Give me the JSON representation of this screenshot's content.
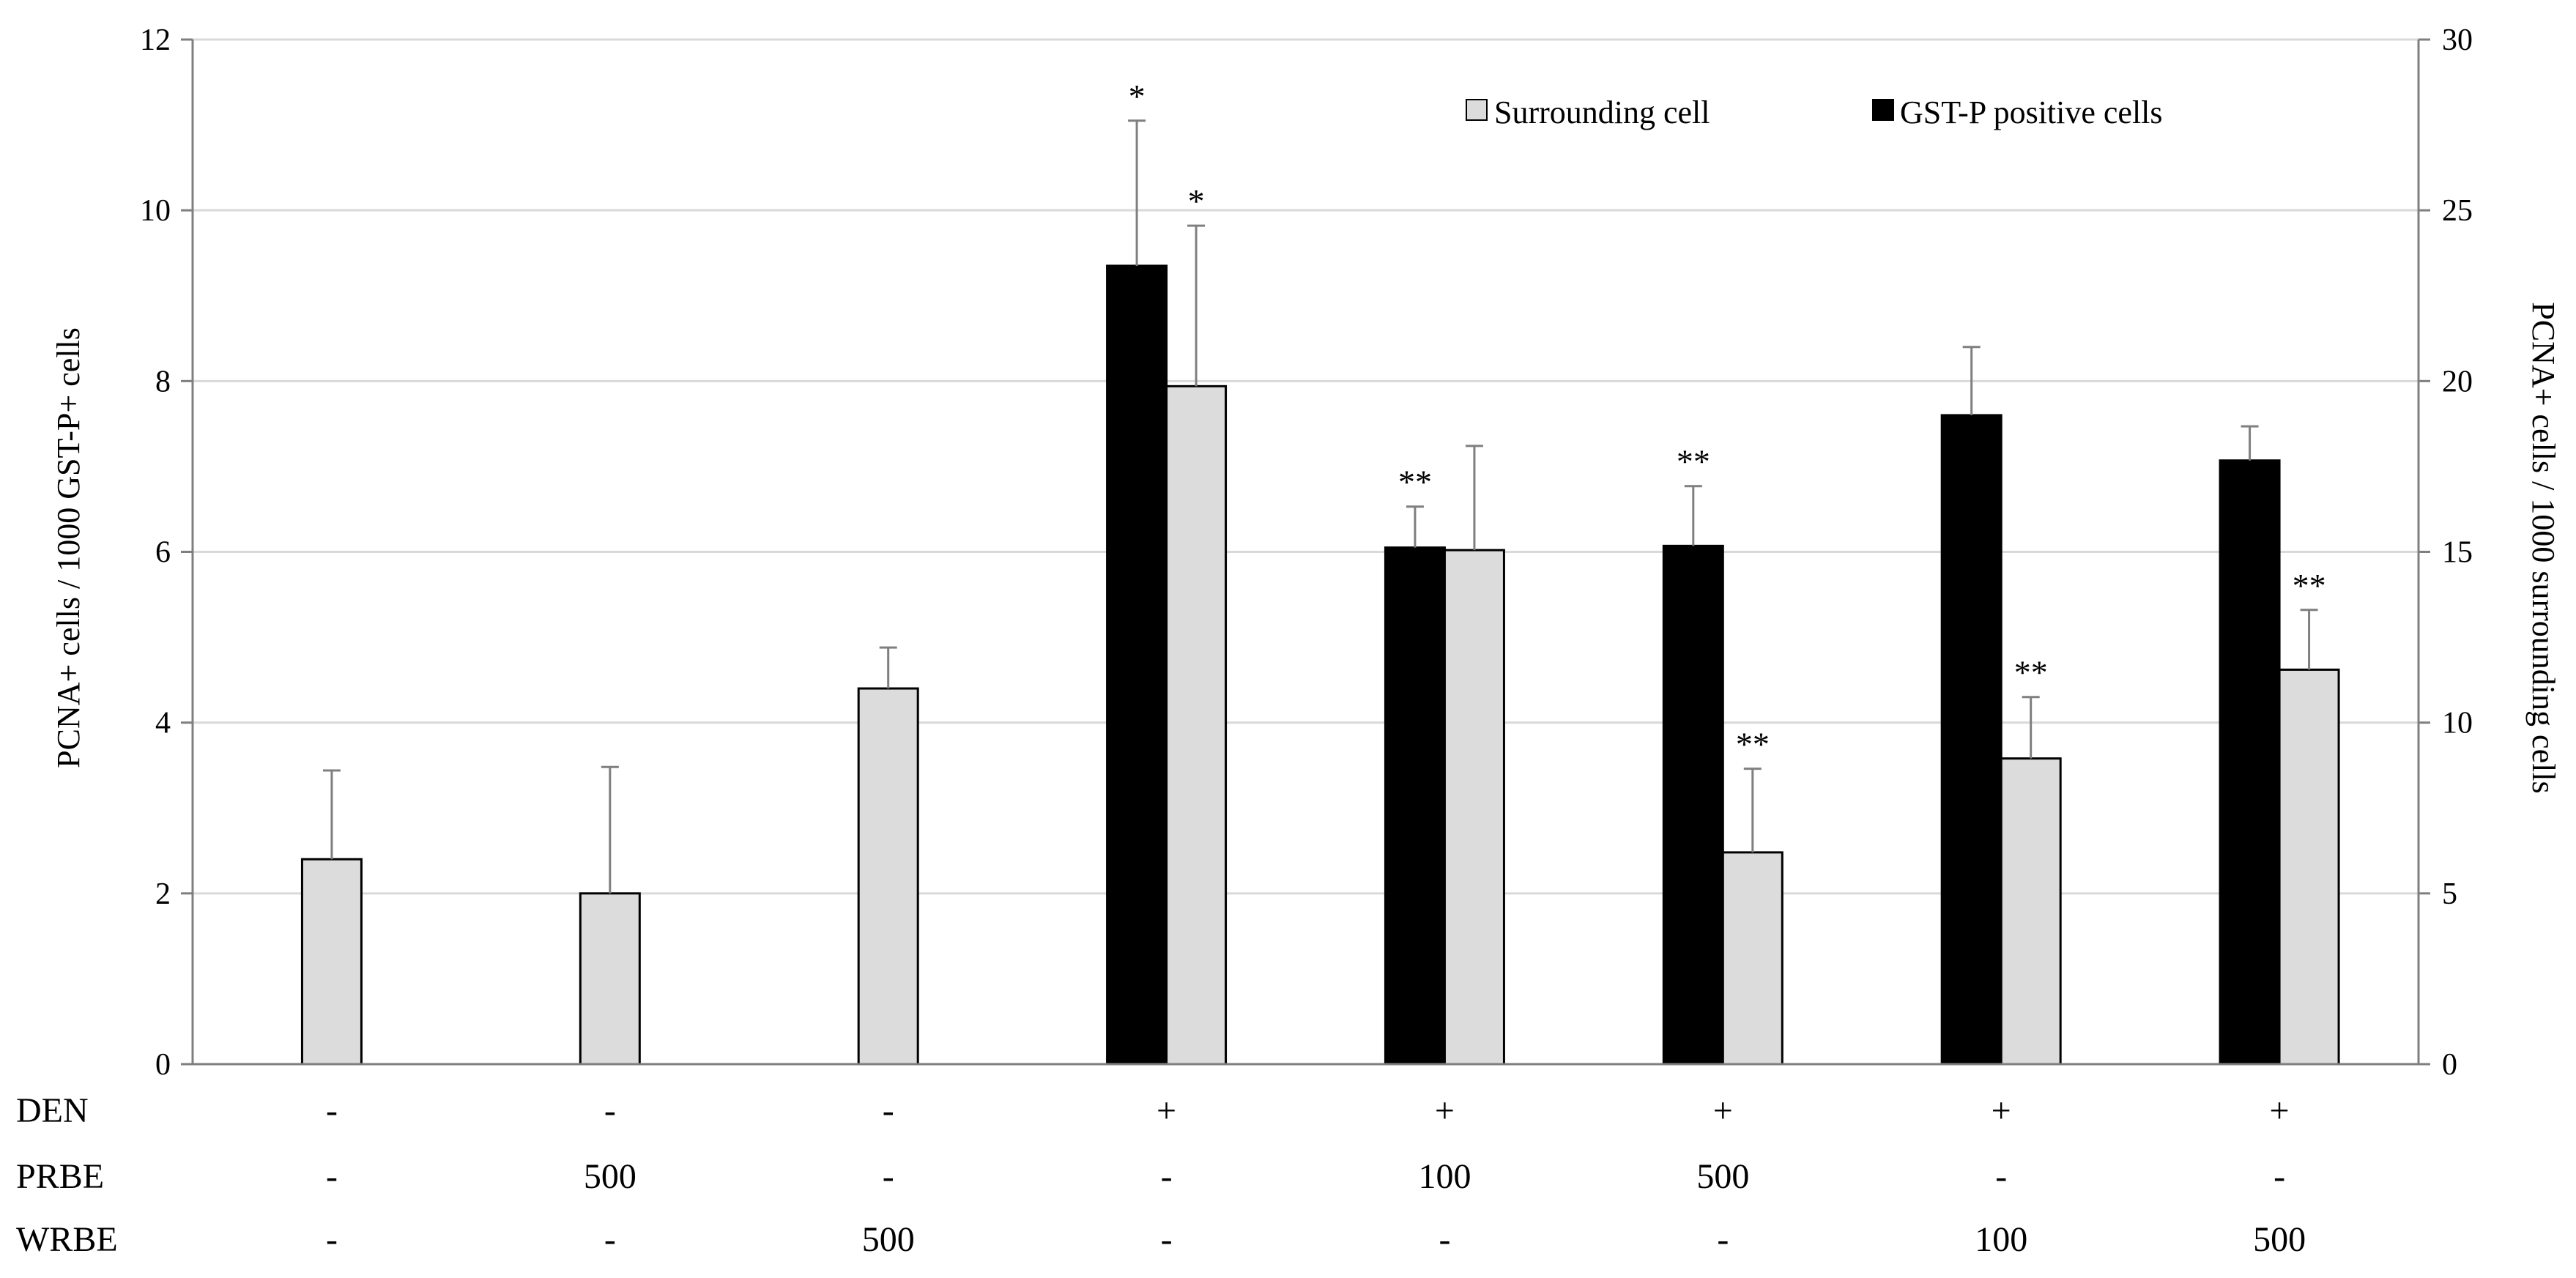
{
  "chart_data": {
    "type": "bar",
    "groups": 8,
    "left_axis": {
      "label": "PCNA+ cells / 1000 GST-P+ cells",
      "min": 0,
      "max": 12,
      "ticks": [
        "0",
        "2",
        "4",
        "6",
        "8",
        "10",
        "12"
      ]
    },
    "right_axis": {
      "label": "PCNA+ cells / 1000 surrounding cells",
      "min": 0,
      "max": 30,
      "ticks": [
        "0",
        "5",
        "10",
        "15",
        "20",
        "25",
        "30"
      ]
    },
    "gridlines": true,
    "legend": {
      "position": "top-right",
      "entries": [
        {
          "name": "Surrounding cell",
          "color": "#dcdcdc"
        },
        {
          "name": "GST-P positive cells",
          "color": "#000000"
        }
      ]
    },
    "series": [
      {
        "name": "GST-P positive cells",
        "axis": "left",
        "color": "#000000",
        "values": [
          null,
          null,
          null,
          9.35,
          6.05,
          6.07,
          7.6,
          7.07
        ],
        "errors": [
          null,
          null,
          null,
          1.7,
          0.48,
          0.7,
          0.8,
          0.4
        ],
        "significance": [
          "",
          "",
          "",
          "*",
          "**",
          "**",
          "",
          ""
        ]
      },
      {
        "name": "Surrounding cell",
        "axis": "right",
        "color": "#dcdcdc",
        "values": [
          6.0,
          5.0,
          11.0,
          19.85,
          15.05,
          6.2,
          8.95,
          11.55
        ],
        "errors": [
          2.6,
          3.7,
          1.2,
          4.7,
          3.05,
          2.45,
          1.8,
          1.75
        ],
        "significance": [
          "",
          "",
          "",
          "*",
          "",
          "**",
          "**",
          "**"
        ]
      }
    ],
    "treatment_table": [
      {
        "label": "DEN",
        "values": [
          "-",
          "-",
          "-",
          "+",
          "+",
          "+",
          "+",
          "+"
        ]
      },
      {
        "label": "PRBE",
        "values": [
          "-",
          "500",
          "-",
          "-",
          "100",
          "500",
          "-",
          "-"
        ]
      },
      {
        "label": "WRBE",
        "values": [
          "-",
          "-",
          "500",
          "-",
          "-",
          "-",
          "100",
          "500"
        ]
      }
    ]
  }
}
